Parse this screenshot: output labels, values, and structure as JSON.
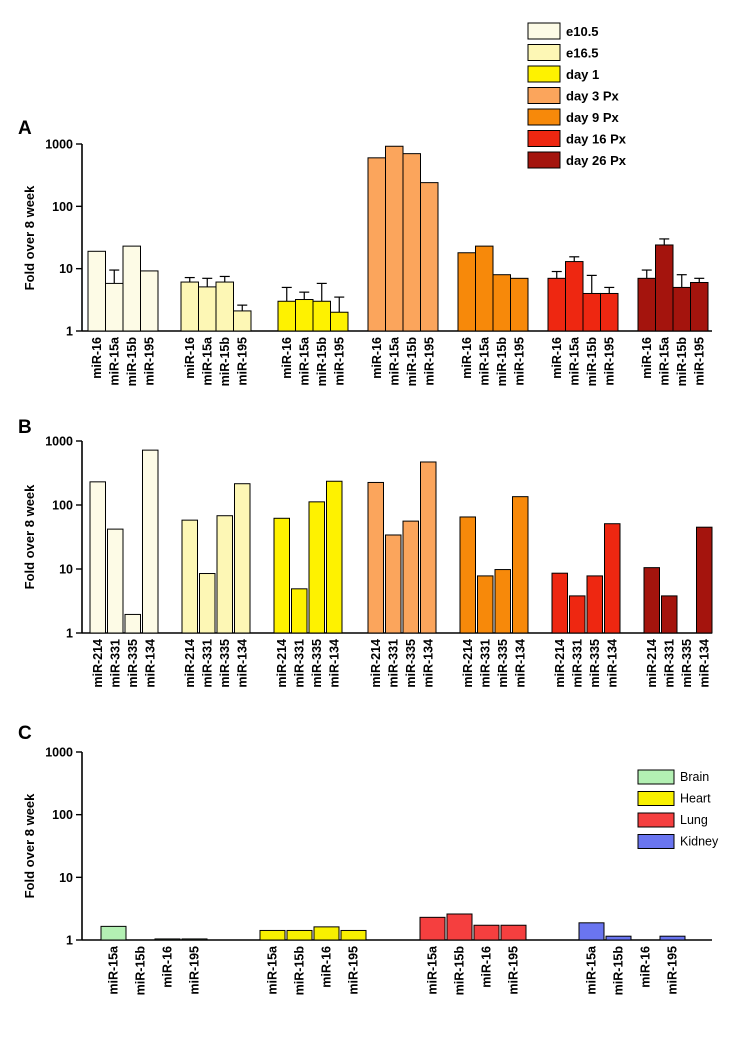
{
  "colors": {
    "e10_5": "#fdfbe6",
    "e16_5": "#fdf7b5",
    "day1": "#fef200",
    "day3": "#fba55c",
    "day9": "#f7890a",
    "day16": "#ee2711",
    "day26": "#a4140d",
    "brain": "#b3f0b3",
    "heart": "#f8f000",
    "lung": "#f53f3f",
    "kidney": "#6a75f0"
  },
  "chart_data": [
    {
      "panel_label": "A",
      "type": "bar",
      "ylabel": "Fold over 8 week",
      "yscale": "log",
      "ylim": [
        1,
        1000
      ],
      "yticks": [
        "1",
        "10",
        "100",
        "1000"
      ],
      "legend_position": "top-right",
      "legend": [
        {
          "name": "e10.5",
          "color_key": "e10_5"
        },
        {
          "name": "e16.5",
          "color_key": "e16_5"
        },
        {
          "name": "day 1",
          "color_key": "day1"
        },
        {
          "name": "day 3 Px",
          "color_key": "day3"
        },
        {
          "name": "day 9 Px",
          "color_key": "day9"
        },
        {
          "name": "day 16 Px",
          "color_key": "day16"
        },
        {
          "name": "day 26 Px",
          "color_key": "day26"
        }
      ],
      "groups": [
        {
          "color_key": "e10_5",
          "categories": [
            "miR-16",
            "miR-15a",
            "miR-15b",
            "miR-195"
          ],
          "values": [
            19,
            5.8,
            23,
            9.2
          ],
          "errors": [
            null,
            9.5,
            null,
            null
          ]
        },
        {
          "color_key": "e16_5",
          "categories": [
            "miR-16",
            "miR-15a",
            "miR-15b",
            "miR-195"
          ],
          "values": [
            6.1,
            5.1,
            6.1,
            2.1
          ],
          "errors": [
            7.2,
            7.0,
            7.5,
            2.6
          ]
        },
        {
          "color_key": "day1",
          "categories": [
            "miR-16",
            "miR-15a",
            "miR-15b",
            "miR-195"
          ],
          "values": [
            3.0,
            3.2,
            3.0,
            2.0
          ],
          "errors": [
            5.0,
            4.2,
            5.8,
            3.5
          ]
        },
        {
          "color_key": "day3",
          "categories": [
            "miR-16",
            "miR-15a",
            "miR-15b",
            "miR-195"
          ],
          "values": [
            600,
            920,
            700,
            240
          ],
          "errors": [
            null,
            null,
            null,
            null
          ]
        },
        {
          "color_key": "day9",
          "categories": [
            "miR-16",
            "miR-15a",
            "miR-15b",
            "miR-195"
          ],
          "values": [
            18,
            23,
            8.0,
            7.0
          ],
          "errors": [
            null,
            null,
            null,
            null
          ]
        },
        {
          "color_key": "day16",
          "categories": [
            "miR-16",
            "miR-15a",
            "miR-15b",
            "miR-195"
          ],
          "values": [
            7.0,
            13,
            4.0,
            4.0
          ],
          "errors": [
            9.0,
            15.5,
            7.8,
            5.0
          ]
        },
        {
          "color_key": "day26",
          "categories": [
            "miR-16",
            "miR-15a",
            "miR-15b",
            "miR-195"
          ],
          "values": [
            7.0,
            24,
            5.0,
            6.0
          ],
          "errors": [
            9.5,
            30,
            8.0,
            7.0
          ]
        }
      ]
    },
    {
      "panel_label": "B",
      "type": "bar",
      "ylabel": "Fold over 8 week",
      "yscale": "log",
      "ylim": [
        1,
        1000
      ],
      "yticks": [
        "1",
        "10",
        "100",
        "1000"
      ],
      "groups": [
        {
          "color_key": "e10_5",
          "categories": [
            "miR-214",
            "miR-331",
            "miR-335",
            "miR-134"
          ],
          "values": [
            230,
            42,
            1.95,
            720
          ]
        },
        {
          "color_key": "e16_5",
          "categories": [
            "miR-214",
            "miR-331",
            "miR-335",
            "miR-134"
          ],
          "values": [
            58,
            8.5,
            68,
            215
          ]
        },
        {
          "color_key": "day1",
          "categories": [
            "miR-214",
            "miR-331",
            "miR-335",
            "miR-134"
          ],
          "values": [
            62,
            4.9,
            112,
            235
          ]
        },
        {
          "color_key": "day3",
          "categories": [
            "miR-214",
            "miR-331",
            "miR-335",
            "miR-134"
          ],
          "values": [
            225,
            34,
            56,
            470
          ]
        },
        {
          "color_key": "day9",
          "categories": [
            "miR-214",
            "miR-331",
            "miR-335",
            "miR-134"
          ],
          "values": [
            65,
            7.8,
            9.8,
            135
          ]
        },
        {
          "color_key": "day16",
          "categories": [
            "miR-214",
            "miR-331",
            "miR-335",
            "miR-134"
          ],
          "values": [
            8.6,
            3.8,
            7.8,
            51
          ]
        },
        {
          "color_key": "day26",
          "categories": [
            "miR-214",
            "miR-331",
            "miR-335",
            "miR-134"
          ],
          "values": [
            10.5,
            3.8,
            null,
            45
          ]
        }
      ]
    },
    {
      "panel_label": "C",
      "type": "bar",
      "ylabel": "Fold over 8 week",
      "yscale": "log",
      "ylim": [
        1,
        1000
      ],
      "yticks": [
        "1",
        "10",
        "100",
        "1000"
      ],
      "legend_position": "top-right",
      "legend": [
        {
          "name": "Brain",
          "color_key": "brain"
        },
        {
          "name": "Heart",
          "color_key": "heart"
        },
        {
          "name": "Lung",
          "color_key": "lung"
        },
        {
          "name": "Kidney",
          "color_key": "kidney"
        }
      ],
      "groups": [
        {
          "color_key": "brain",
          "categories": [
            "miR-15a",
            "miR-15b",
            "miR-16",
            "miR-195"
          ],
          "values": [
            1.65,
            null,
            1.04,
            1.04
          ]
        },
        {
          "color_key": "heart",
          "categories": [
            "miR-15a",
            "miR-15b",
            "miR-16",
            "miR-195"
          ],
          "values": [
            1.42,
            1.42,
            1.62,
            1.42
          ]
        },
        {
          "color_key": "lung",
          "categories": [
            "miR-15a",
            "miR-15b",
            "miR-16",
            "miR-195"
          ],
          "values": [
            2.3,
            2.6,
            1.72,
            1.72
          ]
        },
        {
          "color_key": "kidney",
          "categories": [
            "miR-15a",
            "miR-15b",
            "miR-16",
            "miR-195"
          ],
          "values": [
            1.88,
            1.15,
            null,
            1.15
          ]
        }
      ]
    }
  ]
}
